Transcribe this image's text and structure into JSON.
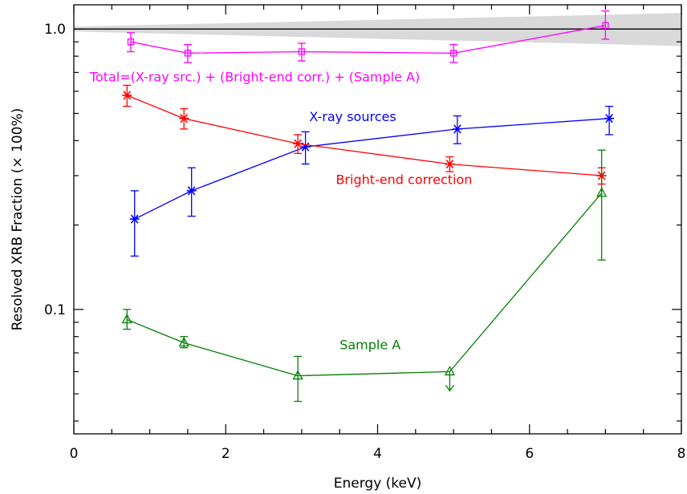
{
  "chart_data": {
    "type": "line",
    "title": "",
    "xlabel": "Energy (keV)",
    "ylabel": "Resolved XRB Fraction (× 100%)",
    "xlim": [
      0,
      8
    ],
    "ylim": [
      0.036,
      1.22
    ],
    "yscale": "log",
    "xticks": [
      0,
      2,
      4,
      6,
      8
    ],
    "yticks": [
      0.1,
      1.0
    ],
    "reference_line": 1.0,
    "band": {
      "x": [
        0,
        8
      ],
      "lower": [
        0.98,
        0.87
      ],
      "upper": [
        1.02,
        1.14
      ]
    },
    "series": [
      {
        "name": "Total=(X-ray src.) + (Bright-end corr.) + (Sample A)",
        "color": "#ff00ff",
        "marker": "square",
        "label_x": 0.21,
        "label_y": 0.65,
        "x": [
          0.75,
          1.5,
          3.0,
          5.0,
          7.0
        ],
        "y": [
          0.9,
          0.82,
          0.83,
          0.82,
          1.03
        ],
        "yerr_low": [
          0.83,
          0.76,
          0.77,
          0.76,
          0.92
        ],
        "yerr_high": [
          0.97,
          0.88,
          0.89,
          0.88,
          1.16
        ]
      },
      {
        "name": "X-ray sources",
        "color": "#0000ff",
        "marker": "asterisk",
        "label_x": 3.1,
        "label_y": 0.47,
        "x": [
          0.8,
          1.55,
          3.05,
          5.05,
          7.05
        ],
        "y": [
          0.21,
          0.265,
          0.38,
          0.44,
          0.48
        ],
        "yerr_low": [
          0.155,
          0.215,
          0.33,
          0.39,
          0.42
        ],
        "yerr_high": [
          0.265,
          0.32,
          0.43,
          0.49,
          0.53
        ]
      },
      {
        "name": "Bright-end correction",
        "color": "#ff0000",
        "marker": "asterisk",
        "label_x": 3.45,
        "label_y": 0.28,
        "x": [
          0.7,
          1.45,
          2.95,
          4.95,
          6.95
        ],
        "y": [
          0.58,
          0.48,
          0.39,
          0.33,
          0.3
        ],
        "yerr_low": [
          0.53,
          0.44,
          0.36,
          0.31,
          0.28
        ],
        "yerr_high": [
          0.63,
          0.52,
          0.42,
          0.35,
          0.32
        ]
      },
      {
        "name": "Sample A",
        "color": "#008000",
        "marker": "triangle",
        "label_x": 3.5,
        "label_y": 0.072,
        "x": [
          0.7,
          1.45,
          2.95,
          4.95,
          6.95
        ],
        "y": [
          0.092,
          0.076,
          0.058,
          0.06,
          0.26
        ],
        "yerr_low": [
          0.085,
          0.073,
          0.047,
          null,
          0.15
        ],
        "yerr_high": [
          0.1,
          0.08,
          0.068,
          null,
          0.37
        ],
        "upper_limit": [
          false,
          false,
          false,
          true,
          false
        ]
      }
    ]
  }
}
